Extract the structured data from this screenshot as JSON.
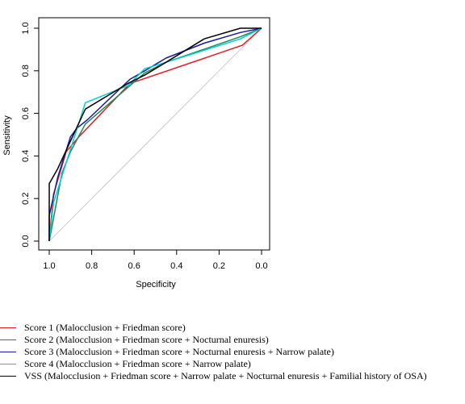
{
  "chart_data": {
    "type": "line",
    "xlabel": "Specificity",
    "ylabel": "Sensitivity",
    "xlim": [
      1.0,
      0.0
    ],
    "ylim": [
      0.0,
      1.0
    ],
    "x_ticks": [
      "1.0",
      "0.8",
      "0.6",
      "0.4",
      "0.2",
      "0.0"
    ],
    "y_ticks": [
      "0.0",
      "0.2",
      "0.4",
      "0.6",
      "0.8",
      "1.0"
    ],
    "diagonal_reference_line": true,
    "grid": false,
    "legend_position": "bottom",
    "series": [
      {
        "name": "Score 1 (Malocclusion + Friedman score)",
        "color": "#e41a1c",
        "points": [
          [
            1.0,
            0.0
          ],
          [
            0.98,
            0.22
          ],
          [
            0.92,
            0.42
          ],
          [
            0.86,
            0.49
          ],
          [
            0.62,
            0.74
          ],
          [
            0.09,
            0.92
          ],
          [
            0.0,
            1.0
          ]
        ]
      },
      {
        "name": "Score 2 (Malocclusion + Friedman score + Nocturnal enuresis)",
        "color": "#1a8a5a",
        "points": [
          [
            1.0,
            0.0
          ],
          [
            0.97,
            0.16
          ],
          [
            0.94,
            0.32
          ],
          [
            0.9,
            0.42
          ],
          [
            0.83,
            0.55
          ],
          [
            0.62,
            0.73
          ],
          [
            0.55,
            0.79
          ],
          [
            0.45,
            0.84
          ],
          [
            0.1,
            0.96
          ],
          [
            0.0,
            1.0
          ]
        ]
      },
      {
        "name": "Score 3 (Malocclusion + Friedman score + Nocturnal enuresis + Narrow palate)",
        "color": "#1a1aa0",
        "points": [
          [
            1.0,
            0.0
          ],
          [
            1.0,
            0.12
          ],
          [
            0.96,
            0.3
          ],
          [
            0.9,
            0.49
          ],
          [
            0.87,
            0.53
          ],
          [
            0.82,
            0.57
          ],
          [
            0.62,
            0.76
          ],
          [
            0.55,
            0.8
          ],
          [
            0.45,
            0.86
          ],
          [
            0.27,
            0.93
          ],
          [
            0.1,
            0.98
          ],
          [
            0.0,
            1.0
          ]
        ]
      },
      {
        "name": "Score 4 (Malocclusion + Friedman score + Narrow palate)",
        "color": "#00d0d0",
        "points": [
          [
            1.0,
            0.0
          ],
          [
            0.98,
            0.18
          ],
          [
            0.91,
            0.4
          ],
          [
            0.83,
            0.65
          ],
          [
            0.63,
            0.73
          ],
          [
            0.55,
            0.81
          ],
          [
            0.45,
            0.84
          ],
          [
            0.1,
            0.95
          ],
          [
            0.0,
            1.0
          ]
        ]
      },
      {
        "name": "VSS (Malocclusion + Friedman score + Narrow palate + Nocturnal enuresis + Familial history of OSA)",
        "color": "#000000",
        "points": [
          [
            1.0,
            0.0
          ],
          [
            1.0,
            0.27
          ],
          [
            0.96,
            0.34
          ],
          [
            0.9,
            0.47
          ],
          [
            0.83,
            0.62
          ],
          [
            0.63,
            0.74
          ],
          [
            0.55,
            0.78
          ],
          [
            0.45,
            0.84
          ],
          [
            0.27,
            0.95
          ],
          [
            0.1,
            1.0
          ],
          [
            0.0,
            1.0
          ]
        ]
      }
    ]
  }
}
